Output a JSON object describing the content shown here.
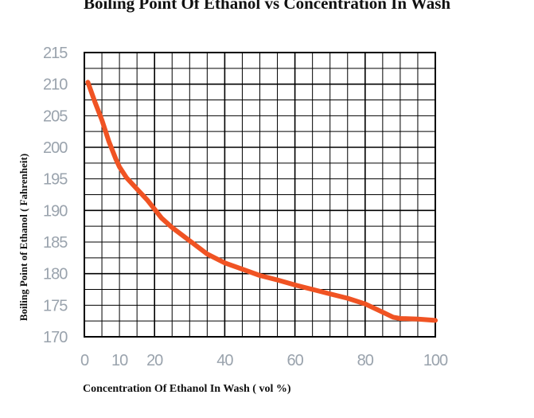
{
  "colors": {
    "series": "#f05323",
    "grid": "#000000",
    "tick_text": "#9aa3ad",
    "background": "#ffffff"
  },
  "chart_data": {
    "type": "line",
    "title": "Boiling Point Of Ethanol vs Concentration In Wash",
    "xlabel": "Concentration Of Ethanol In Wash ( vol %)",
    "ylabel": "Boiling Point of Ethanol ( Fahrenheit)",
    "xlim": [
      0,
      100
    ],
    "ylim": [
      170,
      215
    ],
    "x_ticks": [
      0,
      10,
      20,
      40,
      60,
      80,
      100
    ],
    "y_ticks": [
      170,
      175,
      180,
      185,
      190,
      195,
      200,
      205,
      210,
      215
    ],
    "grid": true,
    "series": [
      {
        "x": [
          1,
          3,
          5,
          7,
          9,
          10,
          12,
          15,
          18,
          22,
          25,
          30,
          35,
          40,
          45,
          50,
          55,
          60,
          65,
          70,
          75,
          80,
          85,
          88,
          90,
          95,
          100
        ],
        "y": [
          210.3,
          207.2,
          204.3,
          200.9,
          198.1,
          196.9,
          195.2,
          193.4,
          191.6,
          188.8,
          187.3,
          185.2,
          183.1,
          181.7,
          180.7,
          179.7,
          179.0,
          178.2,
          177.5,
          176.8,
          176.1,
          175.2,
          173.9,
          173.1,
          172.9,
          172.8,
          172.6
        ]
      }
    ]
  }
}
